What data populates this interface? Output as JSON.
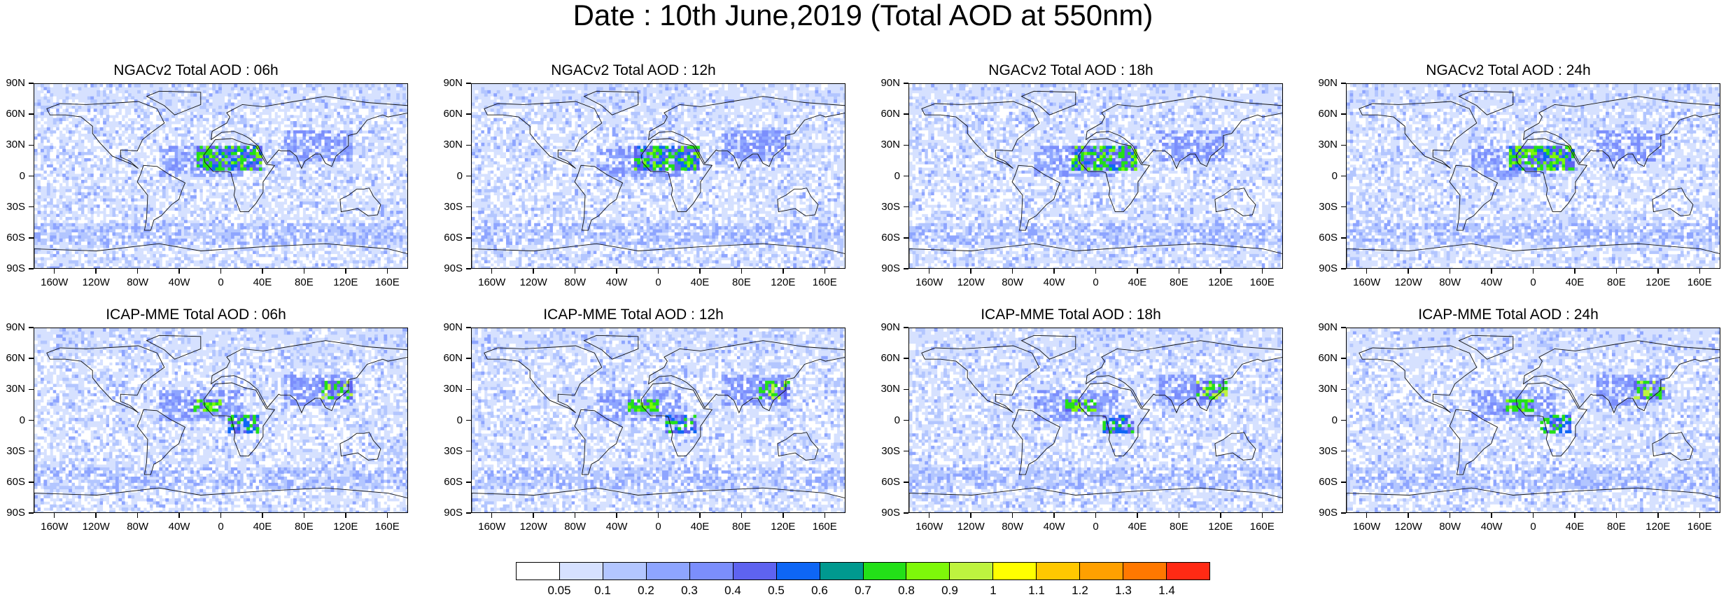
{
  "title": "Date : 10th June,2019 (Total AOD at 550nm)",
  "panels": [
    {
      "title": "NGACv2 Total AOD : 06h",
      "model": "NGACv2",
      "hour": "06h"
    },
    {
      "title": "NGACv2 Total AOD : 12h",
      "model": "NGACv2",
      "hour": "12h"
    },
    {
      "title": "NGACv2 Total AOD : 18h",
      "model": "NGACv2",
      "hour": "18h"
    },
    {
      "title": "NGACv2 Total AOD : 24h",
      "model": "NGACv2",
      "hour": "24h"
    },
    {
      "title": "ICAP-MME Total AOD : 06h",
      "model": "ICAP-MME",
      "hour": "06h"
    },
    {
      "title": "ICAP-MME Total AOD : 12h",
      "model": "ICAP-MME",
      "hour": "12h"
    },
    {
      "title": "ICAP-MME Total AOD : 18h",
      "model": "ICAP-MME",
      "hour": "18h"
    },
    {
      "title": "ICAP-MME Total AOD : 24h",
      "model": "ICAP-MME",
      "hour": "24h"
    }
  ],
  "lat_labels": [
    "90N",
    "60N",
    "30N",
    "0",
    "30S",
    "60S",
    "90S"
  ],
  "lon_labels": [
    "160W",
    "120W",
    "80W",
    "40W",
    "0",
    "40E",
    "80E",
    "120E",
    "160E"
  ],
  "colorbar": {
    "labels": [
      "0.05",
      "0.1",
      "0.2",
      "0.3",
      "0.4",
      "0.5",
      "0.6",
      "0.7",
      "0.8",
      "0.9",
      "1",
      "1.1",
      "1.2",
      "1.3",
      "1.4"
    ],
    "colors": [
      "#ffffff",
      "#d6e1ff",
      "#b3c6ff",
      "#8ea5ff",
      "#7b8efc",
      "#5e63f0",
      "#0e66f5",
      "#00998f",
      "#23e018",
      "#7ef80a",
      "#bef33f",
      "#ffff00",
      "#ffc800",
      "#ffa000",
      "#ff7800",
      "#ff2a14"
    ]
  }
}
